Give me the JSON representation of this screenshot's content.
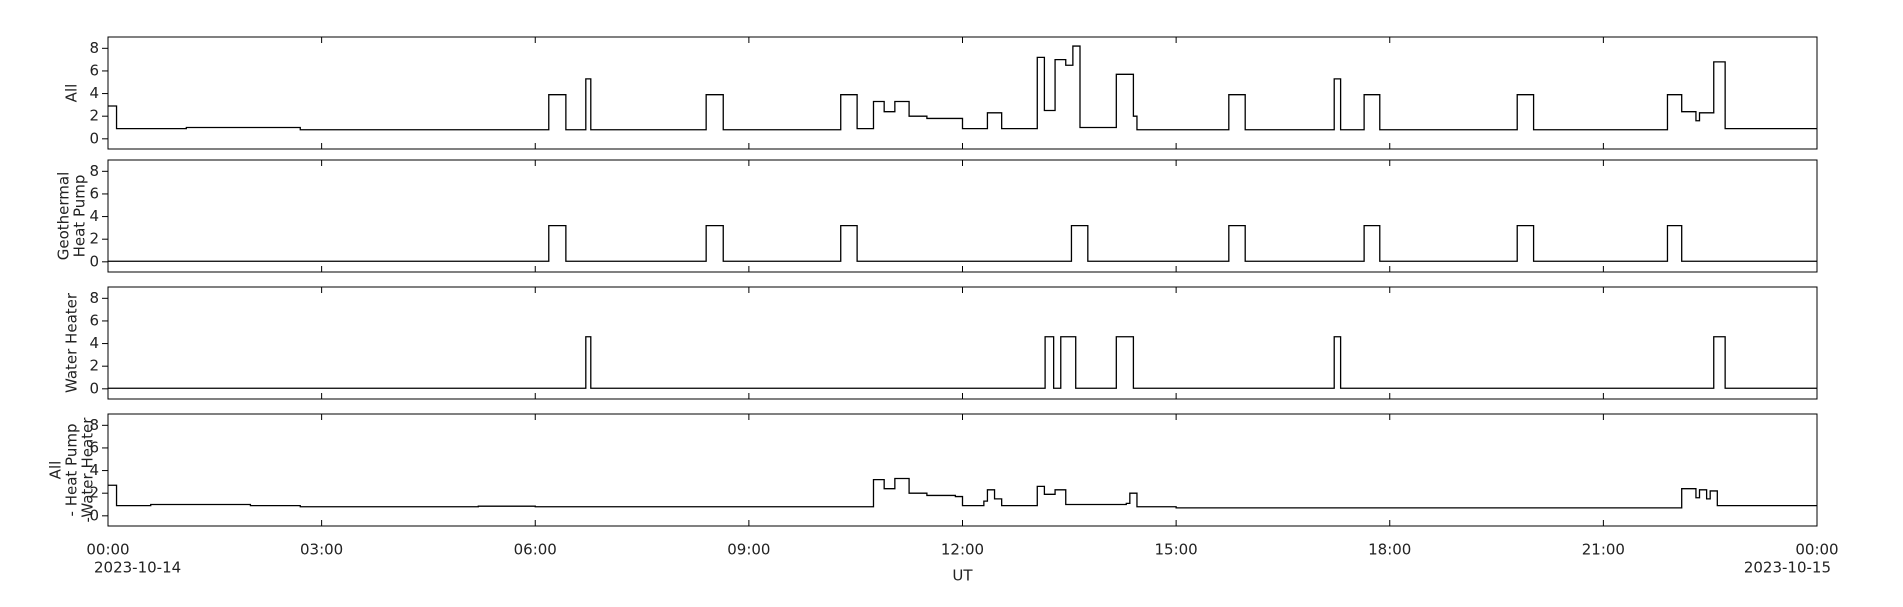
{
  "chart_data": [
    {
      "type": "line",
      "ylabel": [
        "All"
      ],
      "color": "#000000",
      "drawstyle": "steps-post",
      "xlim": [
        0,
        24
      ],
      "ylim": [
        -0.9,
        9
      ],
      "yticks": [
        0,
        2,
        4,
        6,
        8
      ],
      "x": [
        0,
        0.12,
        1.1,
        2.7,
        6.19,
        6.43,
        6.71,
        6.78,
        8.4,
        8.64,
        10.29,
        10.52,
        10.75,
        10.9,
        11.05,
        11.25,
        11.5,
        12.0,
        12.35,
        12.55,
        13.05,
        13.15,
        13.3,
        13.45,
        13.55,
        13.65,
        14.16,
        14.4,
        14.45,
        15.74,
        15.97,
        17.22,
        17.31,
        17.64,
        17.86,
        19.79,
        20.02,
        21.9,
        22.1,
        22.3,
        22.35,
        22.55,
        22.71,
        24
      ],
      "values": [
        2.9,
        0.9,
        1.0,
        0.8,
        3.9,
        0.8,
        5.3,
        0.8,
        3.9,
        0.8,
        3.9,
        0.9,
        3.3,
        2.4,
        3.3,
        2.0,
        1.8,
        0.9,
        2.3,
        0.9,
        7.2,
        2.5,
        7.0,
        6.5,
        8.2,
        1.0,
        5.7,
        2.0,
        0.8,
        3.9,
        0.8,
        5.3,
        0.8,
        3.9,
        0.8,
        3.9,
        0.8,
        3.9,
        2.4,
        1.6,
        2.3,
        6.8,
        0.9,
        0.9
      ]
    },
    {
      "type": "line",
      "ylabel": [
        "Geothermal",
        "Heat Pump"
      ],
      "color": "#000000",
      "drawstyle": "steps-post",
      "xlim": [
        0,
        24
      ],
      "ylim": [
        -0.9,
        9
      ],
      "yticks": [
        0,
        2,
        4,
        6,
        8
      ],
      "x": [
        0,
        6.19,
        6.43,
        8.4,
        8.64,
        10.29,
        10.52,
        13.53,
        13.76,
        15.74,
        15.97,
        17.64,
        17.86,
        19.79,
        20.02,
        21.9,
        22.1,
        24
      ],
      "values": [
        0.05,
        3.2,
        0.05,
        3.2,
        0.05,
        3.2,
        0.05,
        3.2,
        0.05,
        3.2,
        0.05,
        3.2,
        0.05,
        3.2,
        0.05,
        3.2,
        0.05,
        0.05
      ]
    },
    {
      "type": "line",
      "ylabel": [
        "Water Heater"
      ],
      "color": "#000000",
      "drawstyle": "steps-post",
      "xlim": [
        0,
        24
      ],
      "ylim": [
        -0.9,
        9
      ],
      "yticks": [
        0,
        2,
        4,
        6,
        8
      ],
      "x": [
        0,
        6.71,
        6.78,
        13.16,
        13.28,
        13.38,
        13.59,
        14.16,
        14.4,
        17.22,
        17.31,
        22.55,
        22.71,
        24
      ],
      "values": [
        0.05,
        4.6,
        0.05,
        4.6,
        0.05,
        4.6,
        0.05,
        4.6,
        0.05,
        4.6,
        0.05,
        4.6,
        0.05,
        0.05
      ]
    },
    {
      "type": "line",
      "ylabel": [
        "All",
        " - Heat Pump",
        "-Water Heater"
      ],
      "color": "#000000",
      "drawstyle": "steps-post",
      "xlim": [
        0,
        24
      ],
      "ylim": [
        -0.9,
        9
      ],
      "yticks": [
        0,
        2,
        4,
        6,
        8
      ],
      "xlabel": "UT",
      "xticks": [
        {
          "value": 0,
          "label": "00:00",
          "date": "2023-10-14"
        },
        {
          "value": 3,
          "label": "03:00"
        },
        {
          "value": 6,
          "label": "06:00"
        },
        {
          "value": 9,
          "label": "09:00"
        },
        {
          "value": 12,
          "label": "12:00"
        },
        {
          "value": 15,
          "label": "15:00"
        },
        {
          "value": 18,
          "label": "18:00"
        },
        {
          "value": 21,
          "label": "21:00"
        },
        {
          "value": 24,
          "label": "00:00",
          "date": "2023-10-15"
        }
      ],
      "x": [
        0,
        0.12,
        0.6,
        2.0,
        2.7,
        5.2,
        6.0,
        10.6,
        10.75,
        10.9,
        11.05,
        11.25,
        11.5,
        11.9,
        12.0,
        12.3,
        12.35,
        12.45,
        12.55,
        13.05,
        13.15,
        13.3,
        13.45,
        14.3,
        14.35,
        14.45,
        15.0,
        22.1,
        22.3,
        22.35,
        22.45,
        22.5,
        22.6,
        24
      ],
      "values": [
        2.7,
        0.9,
        1.0,
        0.9,
        0.8,
        0.85,
        0.8,
        0.8,
        3.2,
        2.4,
        3.3,
        2.0,
        1.8,
        1.7,
        0.9,
        1.3,
        2.3,
        1.5,
        0.9,
        2.6,
        1.9,
        2.3,
        1.0,
        1.1,
        2.0,
        0.8,
        0.7,
        2.4,
        1.6,
        2.3,
        1.5,
        2.2,
        0.9,
        0.9
      ]
    }
  ]
}
